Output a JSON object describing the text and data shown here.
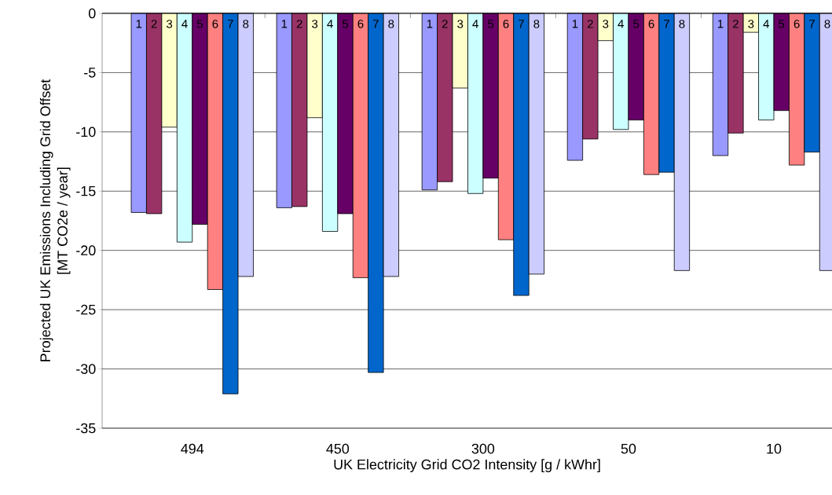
{
  "chart_data": {
    "type": "bar",
    "xlabel": "UK Electricity Grid CO2 Intensity [g / kWhr]",
    "ylabel": "Projected UK Emissions Including Grid Offset\n[MT CO2e / year]",
    "categories": [
      "494",
      "450",
      "300",
      "50",
      "10"
    ],
    "series": [
      {
        "name": "1",
        "color": "#9999ff",
        "values": [
          -16.8,
          -16.4,
          -14.9,
          -12.4,
          -12.0
        ]
      },
      {
        "name": "2",
        "color": "#993366",
        "values": [
          -16.9,
          -16.3,
          -14.2,
          -10.6,
          -10.1
        ]
      },
      {
        "name": "3",
        "color": "#ffffcc",
        "values": [
          -9.6,
          -8.8,
          -6.3,
          -2.3,
          -1.6
        ]
      },
      {
        "name": "4",
        "color": "#ccffff",
        "values": [
          -19.3,
          -18.4,
          -15.2,
          -9.8,
          -9.0
        ]
      },
      {
        "name": "5",
        "color": "#660066",
        "values": [
          -17.8,
          -16.9,
          -13.9,
          -9.0,
          -8.2
        ]
      },
      {
        "name": "6",
        "color": "#ff8080",
        "values": [
          -23.3,
          -22.3,
          -19.1,
          -13.6,
          -12.8
        ]
      },
      {
        "name": "7",
        "color": "#0066cc",
        "values": [
          -32.1,
          -30.3,
          -23.8,
          -13.4,
          -11.7
        ]
      },
      {
        "name": "8",
        "color": "#ccccff",
        "values": [
          -22.2,
          -22.2,
          -22.0,
          -21.7,
          -21.7
        ]
      }
    ],
    "ylim": [
      -35,
      0
    ],
    "yticks": [
      0,
      -5,
      -10,
      -15,
      -20,
      -25,
      -30,
      -35
    ],
    "grid": "y"
  }
}
